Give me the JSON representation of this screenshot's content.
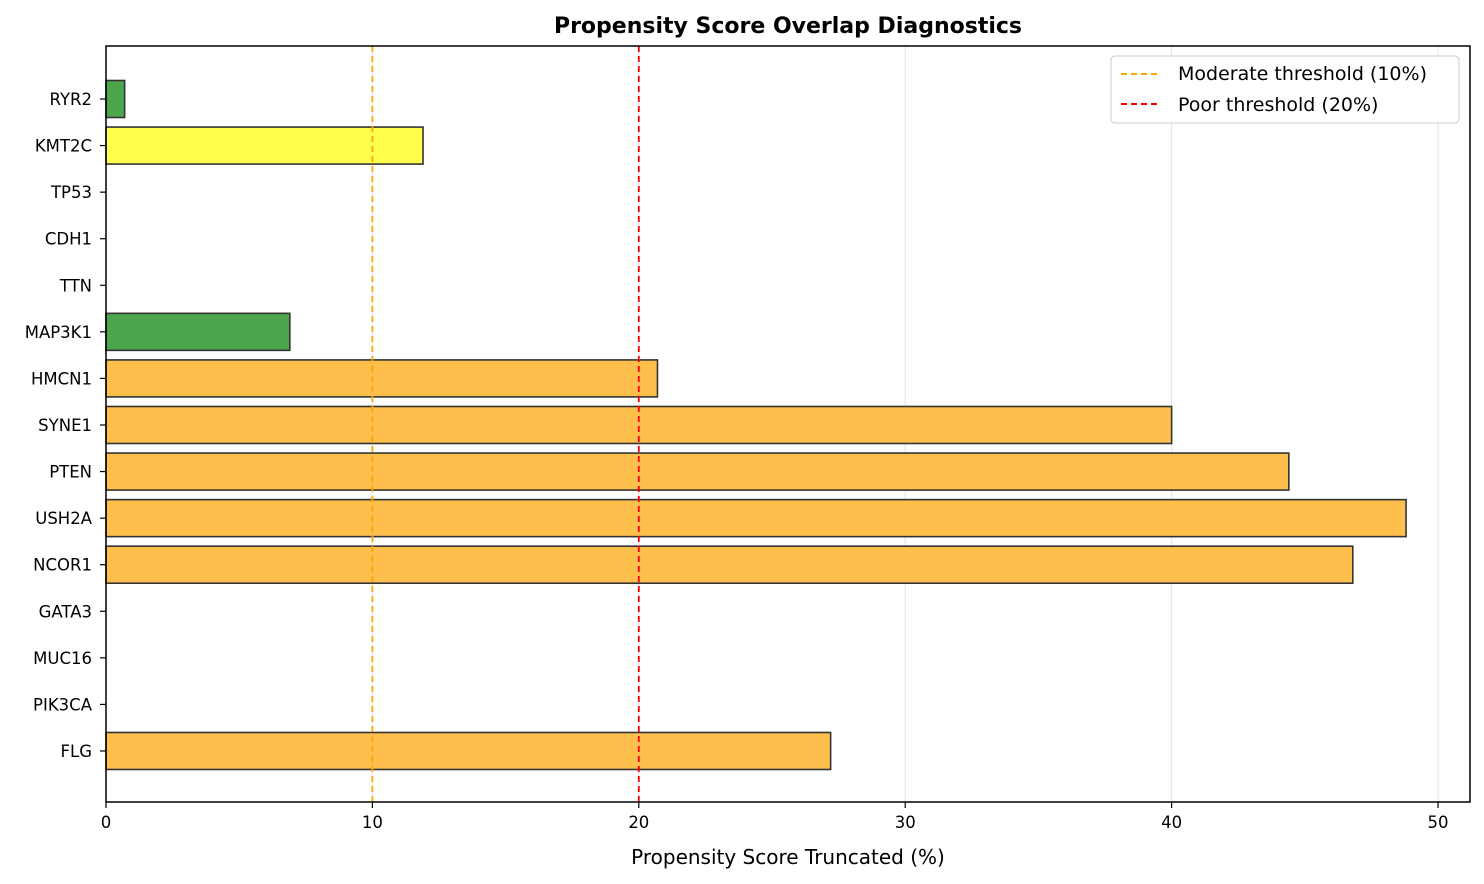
{
  "chart_data": {
    "type": "bar",
    "orientation": "horizontal",
    "title": "Propensity Score Overlap Diagnostics",
    "xlabel": "Propensity Score Truncated (%)",
    "ylabel": "",
    "xlim": [
      0,
      51.2
    ],
    "xticks": [
      0,
      10,
      20,
      30,
      40,
      50
    ],
    "categories": [
      "RYR2",
      "KMT2C",
      "TP53",
      "CDH1",
      "TTN",
      "MAP3K1",
      "HMCN1",
      "SYNE1",
      "PTEN",
      "USH2A",
      "NCOR1",
      "GATA3",
      "MUC16",
      "PIK3CA",
      "FLG"
    ],
    "values": [
      0.7,
      11.9,
      0,
      0,
      0,
      6.9,
      20.7,
      40.0,
      44.4,
      48.8,
      46.8,
      0,
      0,
      0,
      27.2
    ],
    "bar_colors": [
      "#4ca64c",
      "#ffff4c",
      null,
      null,
      null,
      "#4ca64c",
      "#ffbf4c",
      "#ffbf4c",
      "#ffbf4c",
      "#ffbf4c",
      "#ffbf4c",
      null,
      null,
      null,
      "#ffbf4c"
    ],
    "reference_lines": [
      {
        "x": 10,
        "label": "Moderate threshold (10%)",
        "color": "#ffa500",
        "style": "dashed"
      },
      {
        "x": 20,
        "label": "Poor threshold (20%)",
        "color": "#ff0000",
        "style": "dashed"
      }
    ],
    "grid": "x-axis only",
    "legend_position": "top-right"
  }
}
